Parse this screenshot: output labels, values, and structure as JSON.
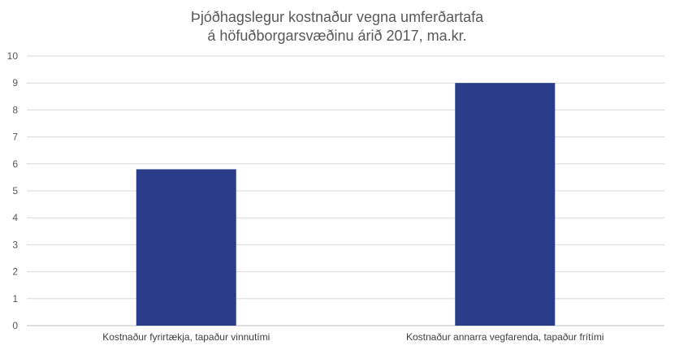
{
  "chart_data": {
    "type": "bar",
    "title_lines": [
      "Þjóðhagslegur kostnaður vegna umferðartafa",
      "á höfuðborgarsvæðinu árið 2017, ma.kr."
    ],
    "categories": [
      "Kostnaður fyrirtækja, tapaður vinnutími",
      "Kostnaður annarra vegfarenda, tapaður frítími"
    ],
    "values": [
      5.8,
      9.0
    ],
    "ylim": [
      0,
      10
    ],
    "yticks": [
      "0",
      "1",
      "2",
      "3",
      "4",
      "5",
      "6",
      "7",
      "8",
      "9",
      "10"
    ],
    "grid": true,
    "legend": "none",
    "colors": {
      "bar": "#2a3c8a"
    }
  }
}
